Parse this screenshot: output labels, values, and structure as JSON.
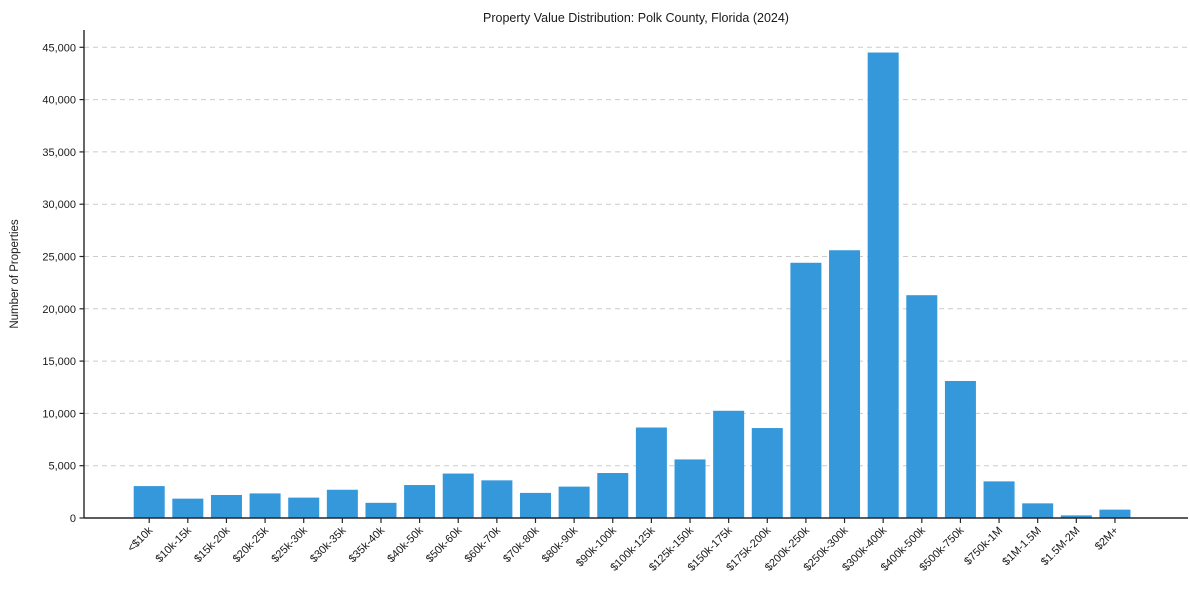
{
  "chart_data": {
    "type": "bar",
    "title": "Property Value Distribution: Polk County, Florida (2024)",
    "xlabel": "",
    "ylabel": "Number of Properties",
    "categories": [
      "<$10k",
      "$10k-15k",
      "$15k-20k",
      "$20k-25k",
      "$25k-30k",
      "$30k-35k",
      "$35k-40k",
      "$40k-50k",
      "$50k-60k",
      "$60k-70k",
      "$70k-80k",
      "$80k-90k",
      "$90k-100k",
      "$100k-125k",
      "$125k-150k",
      "$150k-175k",
      "$175k-200k",
      "$200k-250k",
      "$250k-300k",
      "$300k-400k",
      "$400k-500k",
      "$500k-750k",
      "$750k-1M",
      "$1M-1.5M",
      "$1.5M-2M",
      "$2M+"
    ],
    "values": [
      3050,
      1850,
      2200,
      2350,
      1950,
      2700,
      1450,
      3150,
      4250,
      3600,
      2400,
      3000,
      4300,
      8650,
      5600,
      10250,
      8600,
      24400,
      25600,
      44500,
      21300,
      13100,
      3500,
      1400,
      250,
      800
    ],
    "ylim": [
      0,
      46800
    ],
    "ytick_values": [
      0,
      5000,
      10000,
      15000,
      20000,
      25000,
      30000,
      35000,
      40000,
      45000
    ],
    "ytick_labels": [
      "0",
      "5,000",
      "10,000",
      "15,000",
      "20,000",
      "25,000",
      "30,000",
      "35,000",
      "40,000",
      "45,000"
    ],
    "grid": "horizontal-dashed",
    "legend": "none",
    "bar_color": "#3498db",
    "grid_color": "#cccccc",
    "axis_color": "#262626",
    "text_color": "#1a1a1a"
  }
}
